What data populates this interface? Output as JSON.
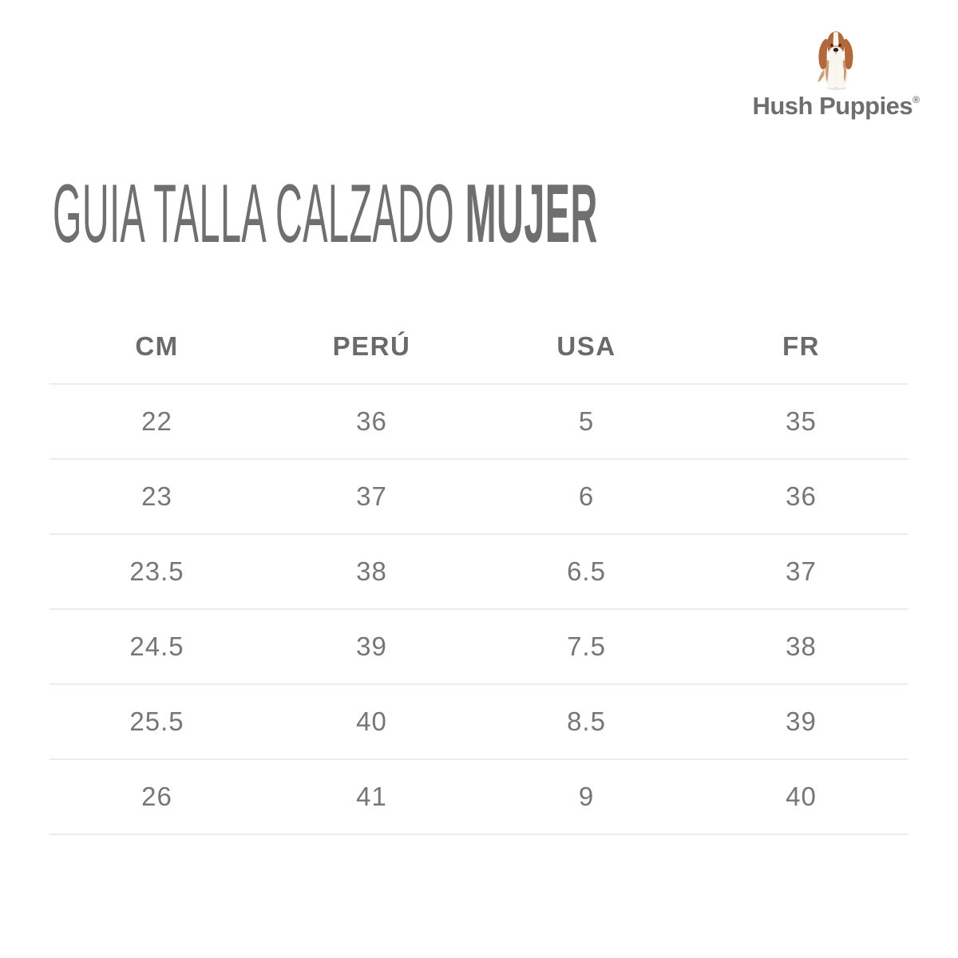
{
  "brand": {
    "name": "Hush Puppies",
    "registered": "®",
    "logo_icon": "basset-hound-icon"
  },
  "title": {
    "regular": "GUIA TALLA CALZADO",
    "bold": "MUJER"
  },
  "chart_data": {
    "type": "table",
    "title": "GUIA TALLA CALZADO MUJER",
    "columns": [
      "CM",
      "PERÚ",
      "USA",
      "FR"
    ],
    "rows": [
      [
        "22",
        "36",
        "5",
        "35"
      ],
      [
        "23",
        "37",
        "6",
        "36"
      ],
      [
        "23.5",
        "38",
        "6.5",
        "37"
      ],
      [
        "24.5",
        "39",
        "7.5",
        "38"
      ],
      [
        "25.5",
        "40",
        "8.5",
        "39"
      ],
      [
        "26",
        "41",
        "9",
        "40"
      ]
    ]
  },
  "colors": {
    "background": "#ffffff",
    "text_gray": "#6f6f6f",
    "divider": "#ededed",
    "dog_tan": "#b2683a",
    "dog_white": "#f8f4ee",
    "dog_dark": "#2c1e16"
  }
}
